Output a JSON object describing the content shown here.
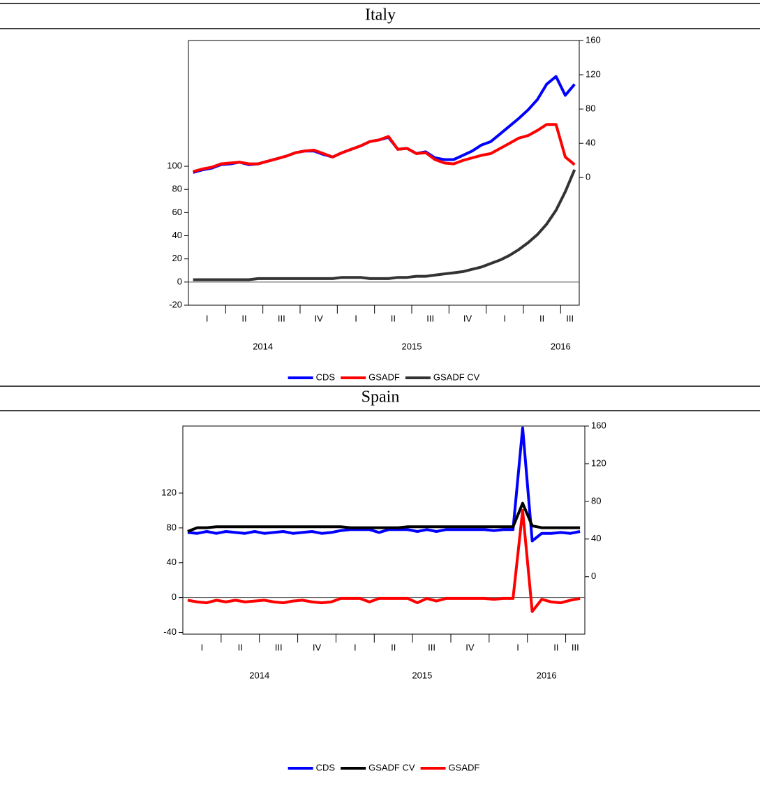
{
  "chart_data": [
    {
      "type": "line",
      "title": "Italy",
      "categories": [
        null,
        null,
        "I",
        null,
        null,
        null,
        "II",
        null,
        null,
        null,
        "III",
        null,
        null,
        null,
        "IV",
        null,
        null,
        null,
        "I",
        null,
        null,
        null,
        "II",
        null,
        null,
        null,
        "III",
        null,
        null,
        null,
        "IV",
        null,
        null,
        null,
        "I",
        null,
        null,
        null,
        "II",
        null,
        null,
        "III"
      ],
      "year_categories": [
        null,
        null,
        null,
        null,
        null,
        null,
        null,
        null,
        "2014",
        null,
        null,
        null,
        null,
        null,
        null,
        null,
        null,
        null,
        null,
        null,
        null,
        null,
        null,
        null,
        "2015",
        null,
        null,
        null,
        null,
        null,
        null,
        null,
        null,
        null,
        null,
        null,
        null,
        null,
        null,
        null,
        "2016",
        null
      ],
      "ylim": [
        -20,
        208.6
      ],
      "yticks": [
        -20,
        0,
        20,
        40,
        60,
        80,
        100
      ],
      "y2lim": [
        -149,
        160
      ],
      "y2ticks": [
        0,
        40,
        80,
        120,
        160
      ],
      "series": [
        {
          "name": "CDS",
          "color": "#0000ff",
          "axis": "y2",
          "values": [
            6,
            9,
            11,
            15,
            16,
            18,
            15,
            16,
            19,
            22,
            25,
            29,
            31,
            31,
            27,
            24,
            29,
            33,
            37,
            42,
            44,
            47,
            33,
            34,
            28,
            30,
            23,
            21,
            21,
            26,
            31,
            38,
            42,
            51,
            60,
            69,
            79,
            91,
            109,
            118,
            96,
            109
          ]
        },
        {
          "name": "GSADF",
          "color": "#ff0000",
          "axis": "y2",
          "values": [
            7,
            10,
            12,
            16,
            17,
            18,
            16,
            16,
            19,
            22,
            25,
            29,
            31,
            32,
            28,
            24,
            29,
            33,
            37,
            42,
            44,
            48,
            33,
            34,
            28,
            29,
            21,
            17,
            16,
            20,
            23,
            26,
            28,
            34,
            40,
            46,
            49,
            55,
            62,
            62,
            24,
            15
          ]
        },
        {
          "name": "GSADF CV",
          "color": "#333333",
          "values": [
            2,
            2,
            2,
            2,
            2,
            2,
            2,
            3,
            3,
            3,
            3,
            3,
            3,
            3,
            3,
            3,
            4,
            4,
            4,
            3,
            3,
            3,
            4,
            4,
            5,
            5,
            6,
            7,
            8,
            9,
            11,
            13,
            16,
            19,
            23,
            28,
            34,
            41,
            50,
            62,
            78,
            97
          ]
        }
      ]
    },
    {
      "type": "line",
      "title": "Spain",
      "categories": [
        null,
        null,
        "I",
        null,
        null,
        null,
        "II",
        null,
        null,
        null,
        "III",
        null,
        null,
        null,
        "IV",
        null,
        null,
        null,
        "I",
        null,
        null,
        null,
        "II",
        null,
        null,
        null,
        "III",
        null,
        null,
        null,
        "IV",
        null,
        null,
        null,
        null,
        "I",
        null,
        null,
        null,
        "II",
        null,
        "III"
      ],
      "year_categories": [
        null,
        null,
        null,
        null,
        null,
        null,
        null,
        null,
        "2014",
        null,
        null,
        null,
        null,
        null,
        null,
        null,
        null,
        null,
        null,
        null,
        null,
        null,
        null,
        null,
        null,
        "2015",
        null,
        null,
        null,
        null,
        null,
        null,
        null,
        null,
        null,
        null,
        null,
        null,
        "2016",
        null,
        null,
        null
      ],
      "ylim": [
        -42,
        197
      ],
      "yticks": [
        -40,
        0,
        40,
        80,
        120
      ],
      "y2lim": [
        -61,
        160
      ],
      "y2ticks": [
        0,
        40,
        80,
        120,
        160
      ],
      "series": [
        {
          "name": "CDS",
          "color": "#0000ff",
          "axis": "y2",
          "values": [
            47,
            46,
            48,
            46,
            48,
            47,
            46,
            48,
            46,
            47,
            48,
            46,
            47,
            48,
            46,
            47,
            49,
            50,
            50,
            50,
            47,
            50,
            50,
            50,
            48,
            50,
            48,
            50,
            50,
            50,
            50,
            50,
            49,
            50,
            50,
            158,
            38,
            46,
            46,
            47,
            46,
            48
          ]
        },
        {
          "name": "GSADF CV",
          "color": "#000000",
          "axis": "y2",
          "values": [
            48,
            52,
            52,
            53,
            53,
            53,
            53,
            53,
            53,
            53,
            53,
            53,
            53,
            53,
            53,
            53,
            53,
            52,
            52,
            52,
            52,
            52,
            52,
            53,
            53,
            53,
            53,
            53,
            53,
            53,
            53,
            53,
            53,
            53,
            53,
            78,
            54,
            52,
            52,
            52,
            52,
            52
          ]
        },
        {
          "name": "GSADF",
          "color": "#ff0000",
          "values": [
            -3,
            -5,
            -6,
            -3,
            -5,
            -3,
            -5,
            -4,
            -3,
            -5,
            -6,
            -4,
            -3,
            -5,
            -6,
            -5,
            -1,
            -1,
            -1,
            -5,
            -1,
            -1,
            -1,
            -1,
            -6,
            -1,
            -4,
            -1,
            -1,
            -1,
            -1,
            -1,
            -2,
            -1,
            -1,
            100,
            -16,
            -2,
            -5,
            -6,
            -3,
            -1
          ]
        }
      ]
    }
  ]
}
